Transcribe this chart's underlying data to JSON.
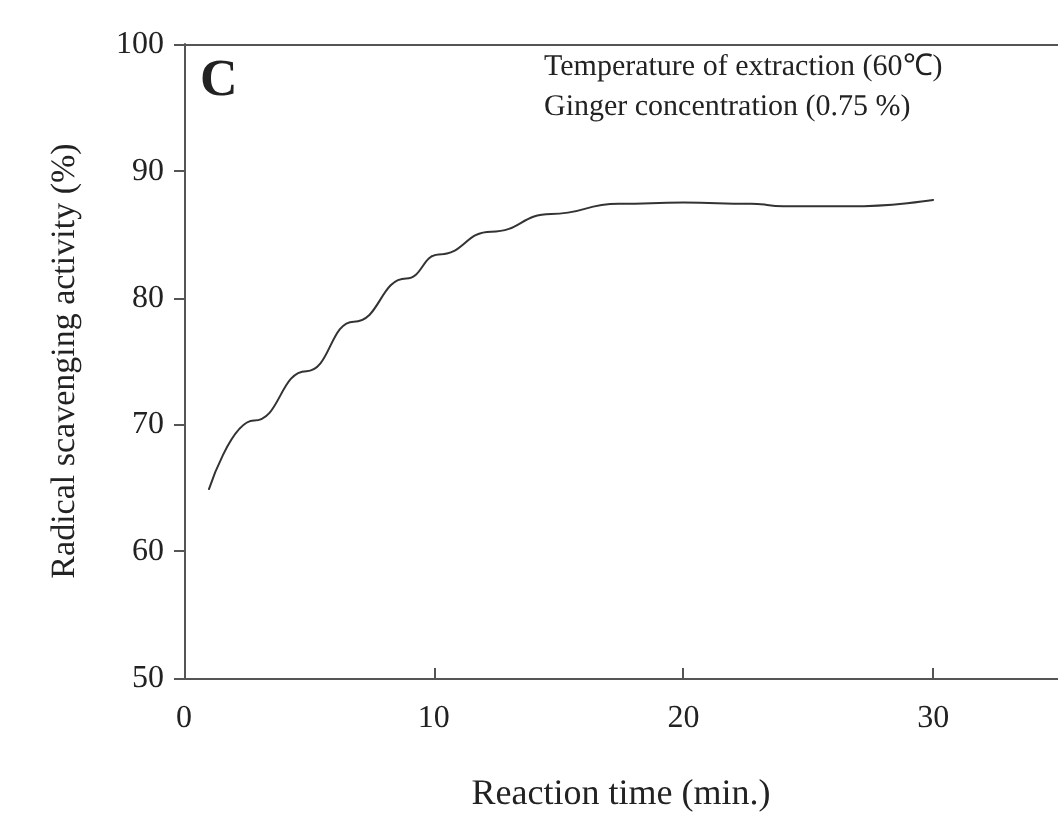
{
  "chart_data": {
    "type": "line",
    "xlabel": "Reaction time (min.)",
    "ylabel": "Radical scavenging activity (%)",
    "annotations": [
      "C",
      "Temperature of extraction (60℃)",
      "Ginger concentration (0.75 %)"
    ],
    "series": [
      {
        "color": "#333333",
        "x": [
          1,
          2.8,
          4.9,
          6.8,
          8.9,
          10.2,
          12.3,
          14.7,
          17.4,
          20,
          22.7,
          24,
          26.7,
          30
        ],
        "values": [
          64.9,
          70.3,
          74.2,
          78.1,
          81.5,
          83.4,
          85.2,
          86.6,
          87.4,
          87.5,
          87.4,
          87.2,
          87.2,
          87.7
        ]
      }
    ],
    "xlim": [
      0,
      35
    ],
    "xticks": [
      0,
      10,
      20,
      30
    ],
    "ylim": [
      50,
      100
    ],
    "yticks": [
      50,
      60,
      70,
      80,
      90,
      100
    ],
    "marker": "none",
    "line_style": "solid"
  }
}
